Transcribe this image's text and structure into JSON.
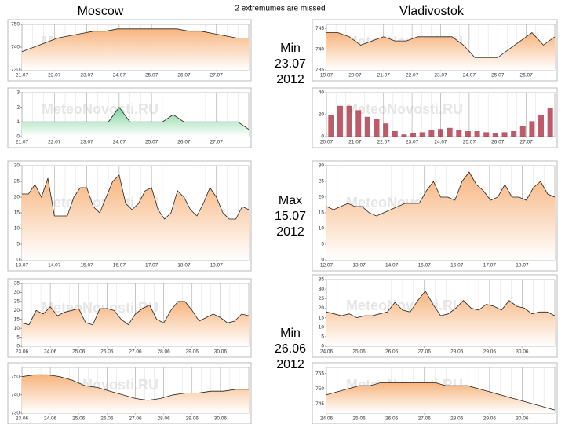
{
  "header": {
    "left": "Moscow",
    "note": "2 extremumes are missed",
    "right": "Vladivostok"
  },
  "annotations": [
    {
      "lines": [
        "Min",
        "23.07",
        "2012"
      ]
    },
    {
      "lines": [
        "Max",
        "15.07",
        "2012"
      ]
    },
    {
      "lines": [
        "Min",
        "26.06",
        "2012"
      ]
    }
  ],
  "watermark": "MeteoNovosti.RU",
  "chart_data": [
    {
      "type": "area",
      "color": "#f7b47e",
      "ylim": [
        730,
        750
      ],
      "yticks": [
        730,
        740,
        750
      ],
      "xticks": [
        "21.07",
        "22.07",
        "23.07",
        "24.07",
        "25.07",
        "26.07",
        "27.07"
      ],
      "values": [
        738,
        740,
        742,
        744,
        745,
        746,
        747,
        747,
        748,
        748,
        748,
        748,
        748,
        748,
        747,
        747,
        746,
        745,
        744,
        744
      ]
    },
    {
      "type": "area",
      "color": "#7fd39a",
      "ylim": [
        0,
        3
      ],
      "yticks": [
        0,
        1,
        2,
        3
      ],
      "xticks": [
        "21.07",
        "22.07",
        "23.07",
        "24.07",
        "25.07",
        "26.07",
        "27.07"
      ],
      "values": [
        1,
        1,
        1,
        1,
        1,
        1,
        1,
        1,
        1,
        2,
        1,
        1,
        1,
        1,
        1.5,
        1,
        1,
        1,
        1,
        1,
        1,
        0.5
      ]
    },
    {
      "type": "area",
      "color": "#f7b47e",
      "ylim": [
        0,
        30
      ],
      "yticks": [
        0,
        5,
        10,
        15,
        20,
        25,
        30
      ],
      "xticks": [
        "13.07",
        "14.07",
        "15.07",
        "16.07",
        "17.07",
        "18.07",
        "19.07"
      ],
      "values": [
        21,
        21,
        24,
        20,
        26,
        14,
        14,
        14,
        20,
        23,
        23,
        17,
        15,
        20,
        25,
        27,
        18,
        16,
        18,
        22,
        23,
        16,
        13,
        15,
        22,
        20,
        16,
        14,
        18,
        23,
        20,
        15,
        13,
        13,
        17,
        16
      ]
    },
    {
      "type": "area",
      "color": "#f7b47e",
      "ylim": [
        0,
        35
      ],
      "yticks": [
        0,
        5,
        10,
        15,
        20,
        25,
        30,
        35
      ],
      "xticks": [
        "23.06",
        "24.06",
        "25.06",
        "26.06",
        "27.06",
        "28.06",
        "29.06",
        "30.06"
      ],
      "values": [
        13,
        12,
        20,
        18,
        22,
        17,
        19,
        20,
        21,
        13,
        12,
        21,
        21,
        20,
        15,
        12,
        18,
        21,
        23,
        15,
        13,
        20,
        25,
        25,
        20,
        14,
        16,
        18,
        16,
        13,
        14,
        18,
        17
      ]
    },
    {
      "type": "area",
      "color": "#f7b47e",
      "ylim": [
        730,
        755
      ],
      "yticks": [
        730,
        740,
        750
      ],
      "xticks": [
        "23.06",
        "24.06",
        "25.06",
        "26.06",
        "27.06",
        "28.06",
        "29.06",
        "30.06"
      ],
      "values": [
        750,
        751,
        751,
        750,
        748,
        745,
        744,
        742,
        740,
        738,
        737,
        738,
        740,
        741,
        741,
        742,
        742,
        743,
        743
      ]
    },
    {
      "type": "area",
      "color": "#f7b47e",
      "ylim": [
        735,
        746
      ],
      "yticks": [
        735,
        740,
        745
      ],
      "xticks": [
        "19.07",
        "20.07",
        "21.07",
        "22.07",
        "23.07",
        "24.07",
        "25.07",
        "26.07"
      ],
      "values": [
        744,
        744,
        743,
        741,
        742,
        743,
        742,
        742,
        743,
        743,
        743,
        743,
        741,
        738,
        738,
        738,
        740,
        742,
        744,
        741,
        743
      ]
    },
    {
      "type": "bar",
      "color": "#a8243a",
      "ylim": [
        0,
        40
      ],
      "yticks": [
        0,
        20,
        40
      ],
      "xticks": [
        "20.07",
        "21.07",
        "22.07",
        "23.07",
        "24.07",
        "25.07",
        "26.07",
        "27.07"
      ],
      "values": [
        20,
        28,
        28,
        24,
        18,
        16,
        12,
        5,
        2,
        3,
        4,
        6,
        7,
        8,
        6,
        5,
        5,
        4,
        3,
        4,
        5,
        10,
        14,
        20,
        26
      ]
    },
    {
      "type": "area",
      "color": "#f7b47e",
      "ylim": [
        0,
        30
      ],
      "yticks": [
        0,
        5,
        10,
        15,
        20,
        25,
        30
      ],
      "xticks": [
        "12.07",
        "13.07",
        "14.07",
        "15.07",
        "16.07",
        "17.07",
        "18.07"
      ],
      "values": [
        17,
        16,
        17,
        18,
        17,
        17,
        15,
        14,
        15,
        16,
        17,
        18,
        18,
        18,
        22,
        25,
        20,
        20,
        19,
        25,
        28,
        24,
        22,
        19,
        20,
        24,
        20,
        20,
        19,
        23,
        25,
        21,
        20
      ]
    },
    {
      "type": "area",
      "color": "#f7b47e",
      "ylim": [
        0,
        35
      ],
      "yticks": [
        0,
        5,
        10,
        15,
        20,
        25,
        30,
        35
      ],
      "xticks": [
        "24.06",
        "25.06",
        "26.06",
        "27.06",
        "28.06",
        "29.06",
        "30.06"
      ],
      "values": [
        18,
        17,
        16,
        17,
        15,
        16,
        16,
        17,
        18,
        23,
        19,
        18,
        24,
        29,
        22,
        16,
        17,
        20,
        24,
        20,
        19,
        22,
        21,
        19,
        24,
        21,
        20,
        17,
        18,
        18,
        16
      ]
    },
    {
      "type": "area",
      "color": "#f7b47e",
      "ylim": [
        742,
        757
      ],
      "yticks": [
        745,
        750,
        755
      ],
      "xticks": [
        "24.06",
        "25.06",
        "26.06",
        "27.06",
        "28.06",
        "29.06",
        "30.06"
      ],
      "values": [
        748,
        749,
        750,
        751,
        751,
        752,
        752,
        752,
        752,
        752,
        752,
        751,
        751,
        751,
        750,
        749,
        748,
        747,
        746,
        745,
        744,
        743
      ]
    }
  ]
}
